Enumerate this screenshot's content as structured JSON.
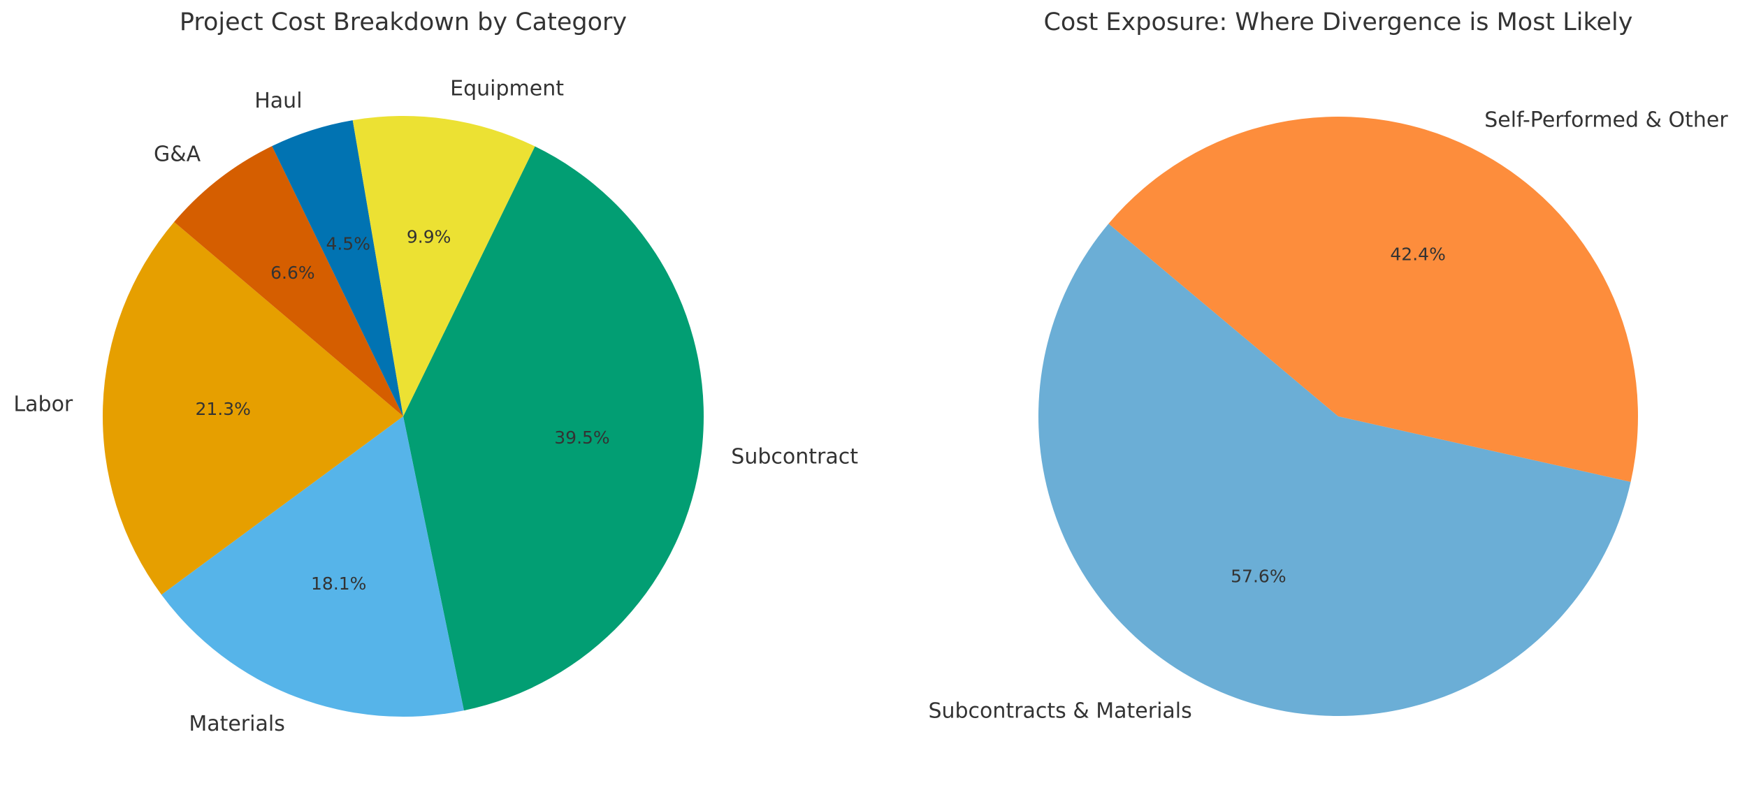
{
  "chart_data": [
    {
      "type": "pie",
      "title": "Project Cost Breakdown by Category",
      "categories": [
        "Subcontract",
        "Materials",
        "Labor",
        "G&A",
        "Haul",
        "Equipment"
      ],
      "values": [
        39.5,
        18.1,
        21.3,
        6.6,
        4.5,
        9.9
      ],
      "value_labels": [
        "39.5%",
        "18.1%",
        "21.3%",
        "6.6%",
        "4.5%",
        "9.9%"
      ],
      "colors": [
        "#029e73",
        "#56b4e9",
        "#e69f00",
        "#d55e00",
        "#0173b2",
        "#ece133"
      ]
    },
    {
      "type": "pie",
      "title": "Cost Exposure: Where Divergence is Most Likely",
      "categories": [
        "Subcontracts & Materials",
        "Self-Performed & Other"
      ],
      "values": [
        57.6,
        42.4
      ],
      "value_labels": [
        "57.6%",
        "42.4%"
      ],
      "colors": [
        "#6baed6",
        "#fd8d3c"
      ]
    }
  ]
}
